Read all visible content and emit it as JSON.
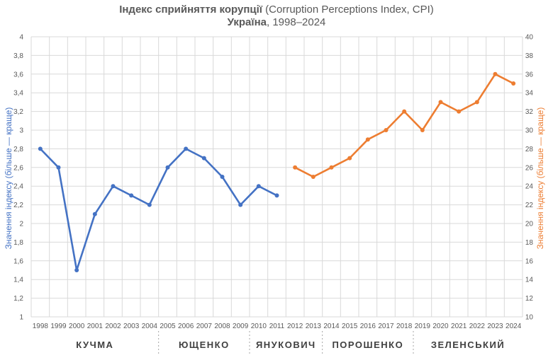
{
  "chart_data": {
    "type": "line",
    "title": {
      "line1_bold": "Індекс сприйняття корупції",
      "line1_rest": " (Corruption Perceptions Index, CPI)",
      "line2_bold": "Україна",
      "line2_rest": ", 1998–2024"
    },
    "x": [
      "1998",
      "1999",
      "2000",
      "2001",
      "2002",
      "2003",
      "2004",
      "2005",
      "2006",
      "2007",
      "2008",
      "2009",
      "2010",
      "2011",
      "2012",
      "2013",
      "2014",
      "2015",
      "2016",
      "2017",
      "2018",
      "2019",
      "2020",
      "2021",
      "2022",
      "2023",
      "2024"
    ],
    "ylabel_left": "Значення індексу (більше — краще)",
    "ylabel_right": "Значення індексу (більше — краще)",
    "ylim_left": [
      1,
      4
    ],
    "ylim_right": [
      10,
      40
    ],
    "yticks_left": [
      "1",
      "1,2",
      "1,4",
      "1,6",
      "1,8",
      "2",
      "2,2",
      "2,4",
      "2,6",
      "2,8",
      "3",
      "3,2",
      "3,4",
      "3,6",
      "3,8",
      "4"
    ],
    "yticks_right": [
      "10",
      "12",
      "14",
      "16",
      "18",
      "20",
      "22",
      "24",
      "26",
      "28",
      "30",
      "32",
      "34",
      "36",
      "38",
      "40"
    ],
    "grid": true,
    "series": [
      {
        "axis": "left",
        "color": "#4472c4",
        "x": [
          "1998",
          "1999",
          "2000",
          "2001",
          "2002",
          "2003",
          "2004",
          "2005",
          "2006",
          "2007",
          "2008",
          "2009",
          "2010",
          "2011"
        ],
        "values": [
          2.8,
          2.6,
          1.5,
          2.1,
          2.4,
          2.3,
          2.2,
          2.6,
          2.8,
          2.7,
          2.5,
          2.2,
          2.4,
          2.3
        ]
      },
      {
        "axis": "right",
        "color": "#ed7d31",
        "x": [
          "2012",
          "2013",
          "2014",
          "2015",
          "2016",
          "2017",
          "2018",
          "2019",
          "2020",
          "2021",
          "2022",
          "2023",
          "2024"
        ],
        "values": [
          26,
          25,
          26,
          27,
          29,
          30,
          32,
          30,
          33,
          32,
          33,
          36,
          35
        ]
      }
    ],
    "eras": [
      {
        "label": "КУЧМА",
        "from": "1998",
        "to": "2004"
      },
      {
        "label": "ЮЩЕНКО",
        "from": "2005",
        "to": "2009"
      },
      {
        "label": "ЯНУКОВИЧ",
        "from": "2010",
        "to": "2013"
      },
      {
        "label": "ПОРОШЕНКО",
        "from": "2014",
        "to": "2018"
      },
      {
        "label": "ЗЕЛЕНСЬКИЙ",
        "from": "2019",
        "to": "2024"
      }
    ]
  }
}
